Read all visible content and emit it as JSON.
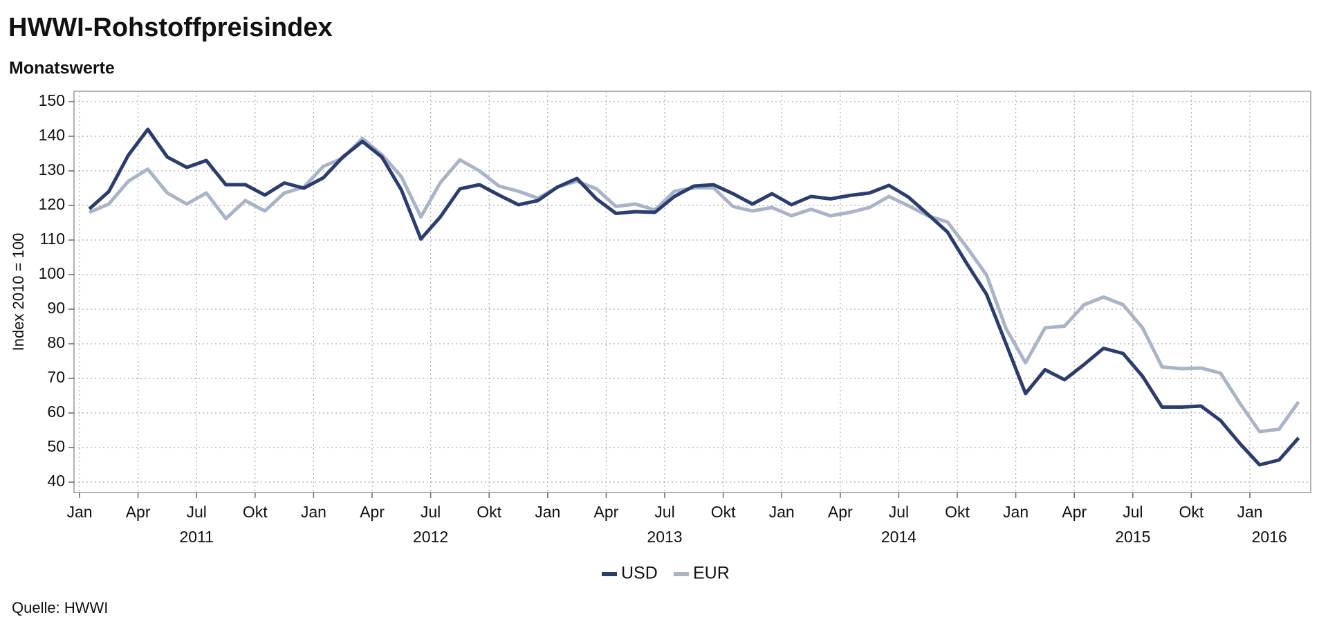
{
  "chart_data": {
    "type": "line",
    "title": "HWWI-Rohstoffpreisindex",
    "subtitle": "Monatswerte",
    "y_label": "Index 2010 = 100",
    "source": "Quelle: HWWI",
    "x": [
      "2011-01",
      "2011-02",
      "2011-03",
      "2011-04",
      "2011-05",
      "2011-06",
      "2011-07",
      "2011-08",
      "2011-09",
      "2011-10",
      "2011-11",
      "2011-12",
      "2012-01",
      "2012-02",
      "2012-03",
      "2012-04",
      "2012-05",
      "2012-06",
      "2012-07",
      "2012-08",
      "2012-09",
      "2012-10",
      "2012-11",
      "2012-12",
      "2013-01",
      "2013-02",
      "2013-03",
      "2013-04",
      "2013-05",
      "2013-06",
      "2013-07",
      "2013-08",
      "2013-09",
      "2013-10",
      "2013-11",
      "2013-12",
      "2014-01",
      "2014-02",
      "2014-03",
      "2014-04",
      "2014-05",
      "2014-06",
      "2014-07",
      "2014-08",
      "2014-09",
      "2014-10",
      "2014-11",
      "2014-12",
      "2015-01",
      "2015-02",
      "2015-03",
      "2015-04",
      "2015-05",
      "2015-06",
      "2015-07",
      "2015-08",
      "2015-09",
      "2015-10",
      "2015-11",
      "2015-12",
      "2016-01",
      "2016-02",
      "2016-03"
    ],
    "series": [
      {
        "name": "USD",
        "color": "#2a3d6e",
        "values": [
          119,
          124,
          134.5,
          142,
          134,
          131,
          133,
          126,
          126,
          123,
          126.5,
          125,
          128,
          134,
          138.5,
          134,
          124.5,
          110.3,
          116.7,
          124.8,
          126,
          123,
          120.2,
          121.4,
          125.3,
          127.8,
          121.9,
          117.7,
          118.2,
          118,
          122.6,
          125.6,
          126,
          123.4,
          120.4,
          123.4,
          120.2,
          122.6,
          121.9,
          122.9,
          123.6,
          125.8,
          122.4,
          117.4,
          112.3,
          103.1,
          94.3,
          80,
          65.6,
          72.5,
          69.6,
          74,
          78.7,
          77.2,
          70.6,
          61.7,
          61.7,
          62,
          57.8,
          51.1,
          45,
          46.4,
          52.8
        ]
      },
      {
        "name": "EUR",
        "color": "#a9b4c8",
        "values": [
          118,
          120.4,
          127,
          130.5,
          123.6,
          120.4,
          123.6,
          116.2,
          121.4,
          118.4,
          123.6,
          125.3,
          131.3,
          133.7,
          139.4,
          134.7,
          128.3,
          116.7,
          126.6,
          133.2,
          130,
          125.6,
          124.1,
          122.1,
          125.3,
          127,
          124.8,
          119.7,
          120.4,
          118.7,
          124.1,
          125.1,
          125.1,
          119.7,
          118.4,
          119.4,
          117,
          118.9,
          117,
          118,
          119.4,
          122.6,
          119.9,
          117,
          115.2,
          107.8,
          99.9,
          84.4,
          74.5,
          84.6,
          85.1,
          91.3,
          93.5,
          91.3,
          84.6,
          73.3,
          72.8,
          73,
          71.5,
          62.7,
          54.6,
          55.3,
          63.2
        ]
      }
    ],
    "xticks": [
      {
        "value": "2011-01",
        "label": "Jan"
      },
      {
        "value": "2011-04",
        "label": "Apr"
      },
      {
        "value": "2011-07",
        "label": "Jul"
      },
      {
        "value": "2011-10",
        "label": "Okt"
      },
      {
        "value": "2012-01",
        "label": "Jan"
      },
      {
        "value": "2012-04",
        "label": "Apr"
      },
      {
        "value": "2012-07",
        "label": "Jul"
      },
      {
        "value": "2012-10",
        "label": "Okt"
      },
      {
        "value": "2013-01",
        "label": "Jan"
      },
      {
        "value": "2013-04",
        "label": "Apr"
      },
      {
        "value": "2013-07",
        "label": "Jul"
      },
      {
        "value": "2013-10",
        "label": "Okt"
      },
      {
        "value": "2014-01",
        "label": "Jan"
      },
      {
        "value": "2014-04",
        "label": "Apr"
      },
      {
        "value": "2014-07",
        "label": "Jul"
      },
      {
        "value": "2014-10",
        "label": "Okt"
      },
      {
        "value": "2015-01",
        "label": "Jan"
      },
      {
        "value": "2015-04",
        "label": "Apr"
      },
      {
        "value": "2015-07",
        "label": "Jul"
      },
      {
        "value": "2015-10",
        "label": "Okt"
      },
      {
        "value": "2016-01",
        "label": "Jan"
      }
    ],
    "year_labels": [
      {
        "value": "2011-07",
        "label": "2011"
      },
      {
        "value": "2012-07",
        "label": "2012"
      },
      {
        "value": "2013-07",
        "label": "2013"
      },
      {
        "value": "2014-07",
        "label": "2014"
      },
      {
        "value": "2015-07",
        "label": "2015"
      },
      {
        "value": "2016-02",
        "label": "2016"
      }
    ],
    "ylim": [
      37,
      153
    ],
    "yticks": [
      40,
      50,
      60,
      70,
      80,
      90,
      100,
      110,
      120,
      130,
      140,
      150
    ],
    "grid": true,
    "legend": "bottom"
  }
}
